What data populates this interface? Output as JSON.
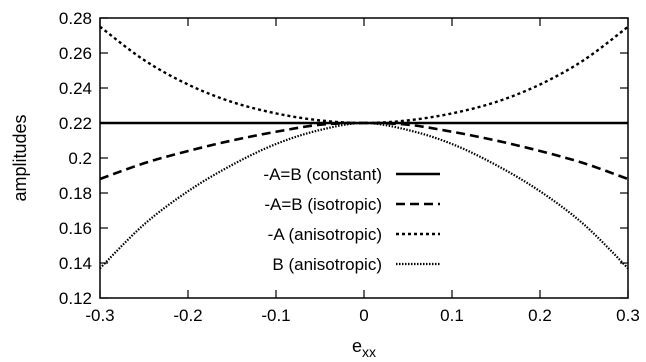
{
  "chart_data": {
    "type": "line",
    "title": "",
    "xlabel": "e",
    "xlabel_sub": "xx",
    "ylabel": "amplitudes",
    "xlim": [
      -0.3,
      0.3
    ],
    "ylim": [
      0.12,
      0.28
    ],
    "xticks": [
      -0.3,
      -0.2,
      -0.1,
      0,
      0.1,
      0.2,
      0.3
    ],
    "xtick_labels": [
      "-0.3",
      "-0.2",
      "-0.1",
      "0",
      "0.1",
      "0.2",
      "0.3"
    ],
    "yticks": [
      0.12,
      0.14,
      0.16,
      0.18,
      0.2,
      0.22,
      0.24,
      0.26,
      0.28
    ],
    "ytick_labels": [
      "0.12",
      "0.14",
      "0.16",
      "0.18",
      "0.2",
      "0.22",
      "0.24",
      "0.26",
      "0.28"
    ],
    "grid": false,
    "legend_position": "bottom-center",
    "x": [
      -0.3,
      -0.25,
      -0.2,
      -0.15,
      -0.1,
      -0.05,
      0,
      0.05,
      0.1,
      0.15,
      0.2,
      0.25,
      0.3
    ],
    "series": [
      {
        "name": "-A=B (constant)",
        "style": "solid",
        "values": [
          0.22,
          0.22,
          0.22,
          0.22,
          0.22,
          0.22,
          0.22,
          0.22,
          0.22,
          0.22,
          0.22,
          0.22,
          0.22
        ]
      },
      {
        "name": "-A=B (isotropic)",
        "style": "dashed",
        "values": [
          0.188,
          0.197,
          0.204,
          0.21,
          0.215,
          0.219,
          0.22,
          0.219,
          0.215,
          0.21,
          0.204,
          0.197,
          0.188
        ]
      },
      {
        "name": "-A (anisotropic)",
        "style": "dotted",
        "values": [
          0.275,
          0.256,
          0.242,
          0.232,
          0.2255,
          0.2215,
          0.22,
          0.2215,
          0.2255,
          0.232,
          0.242,
          0.256,
          0.275
        ]
      },
      {
        "name": "B (anisotropic)",
        "style": "densedot",
        "values": [
          0.137,
          0.162,
          0.181,
          0.196,
          0.208,
          0.216,
          0.22,
          0.216,
          0.208,
          0.196,
          0.181,
          0.162,
          0.137
        ]
      }
    ]
  }
}
